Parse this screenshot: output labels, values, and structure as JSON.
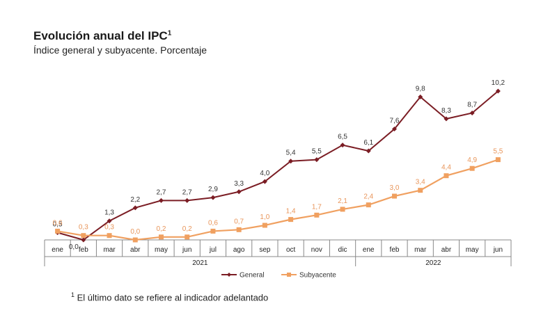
{
  "title": "Evolución anual del IPC",
  "title_sup": "1",
  "subtitle": "Índice general y subyacente. Porcentaje",
  "footnote_mark": "1",
  "footnote": "El último dato se refiere al indicador adelantado",
  "chart_data": {
    "type": "line",
    "categories": [
      "ene",
      "feb",
      "mar",
      "abr",
      "may",
      "jun",
      "jul",
      "ago",
      "sep",
      "oct",
      "nov",
      "dic",
      "ene",
      "feb",
      "mar",
      "abr",
      "may",
      "jun"
    ],
    "year_groups": [
      {
        "label": "2021",
        "from": 0,
        "to": 11
      },
      {
        "label": "2022",
        "from": 12,
        "to": 17
      }
    ],
    "series": [
      {
        "name": "General",
        "color": "#7b1d24",
        "marker": "diamond",
        "values": [
          0.5,
          0.0,
          1.3,
          2.2,
          2.7,
          2.7,
          2.9,
          3.3,
          4.0,
          5.4,
          5.5,
          6.5,
          6.1,
          7.6,
          9.8,
          8.3,
          8.7,
          10.2
        ],
        "labels": [
          "0,5",
          "0,0",
          "1,3",
          "2,2",
          "2,7",
          "2,7",
          "2,9",
          "3,3",
          "4,0",
          "5,4",
          "5,5",
          "6,5",
          "6,1",
          "7,6",
          "9,8",
          "8,3",
          "8,7",
          "10,2"
        ]
      },
      {
        "name": "Subyacente",
        "color": "#f0a060",
        "marker": "square",
        "values": [
          0.6,
          0.3,
          0.3,
          0.0,
          0.2,
          0.2,
          0.6,
          0.7,
          1.0,
          1.4,
          1.7,
          2.1,
          2.4,
          3.0,
          3.4,
          4.4,
          4.9,
          5.5
        ],
        "labels": [
          "0,6",
          "0,3",
          "0,3",
          "0,0",
          "0,2",
          "0,2",
          "0,6",
          "0,7",
          "1,0",
          "1,4",
          "1,7",
          "2,1",
          "2,4",
          "3,0",
          "3,4",
          "4,4",
          "4,9",
          "5,5"
        ]
      }
    ],
    "ylim": [
      0,
      10.2
    ],
    "grid": false,
    "legend": "bottom-center"
  }
}
